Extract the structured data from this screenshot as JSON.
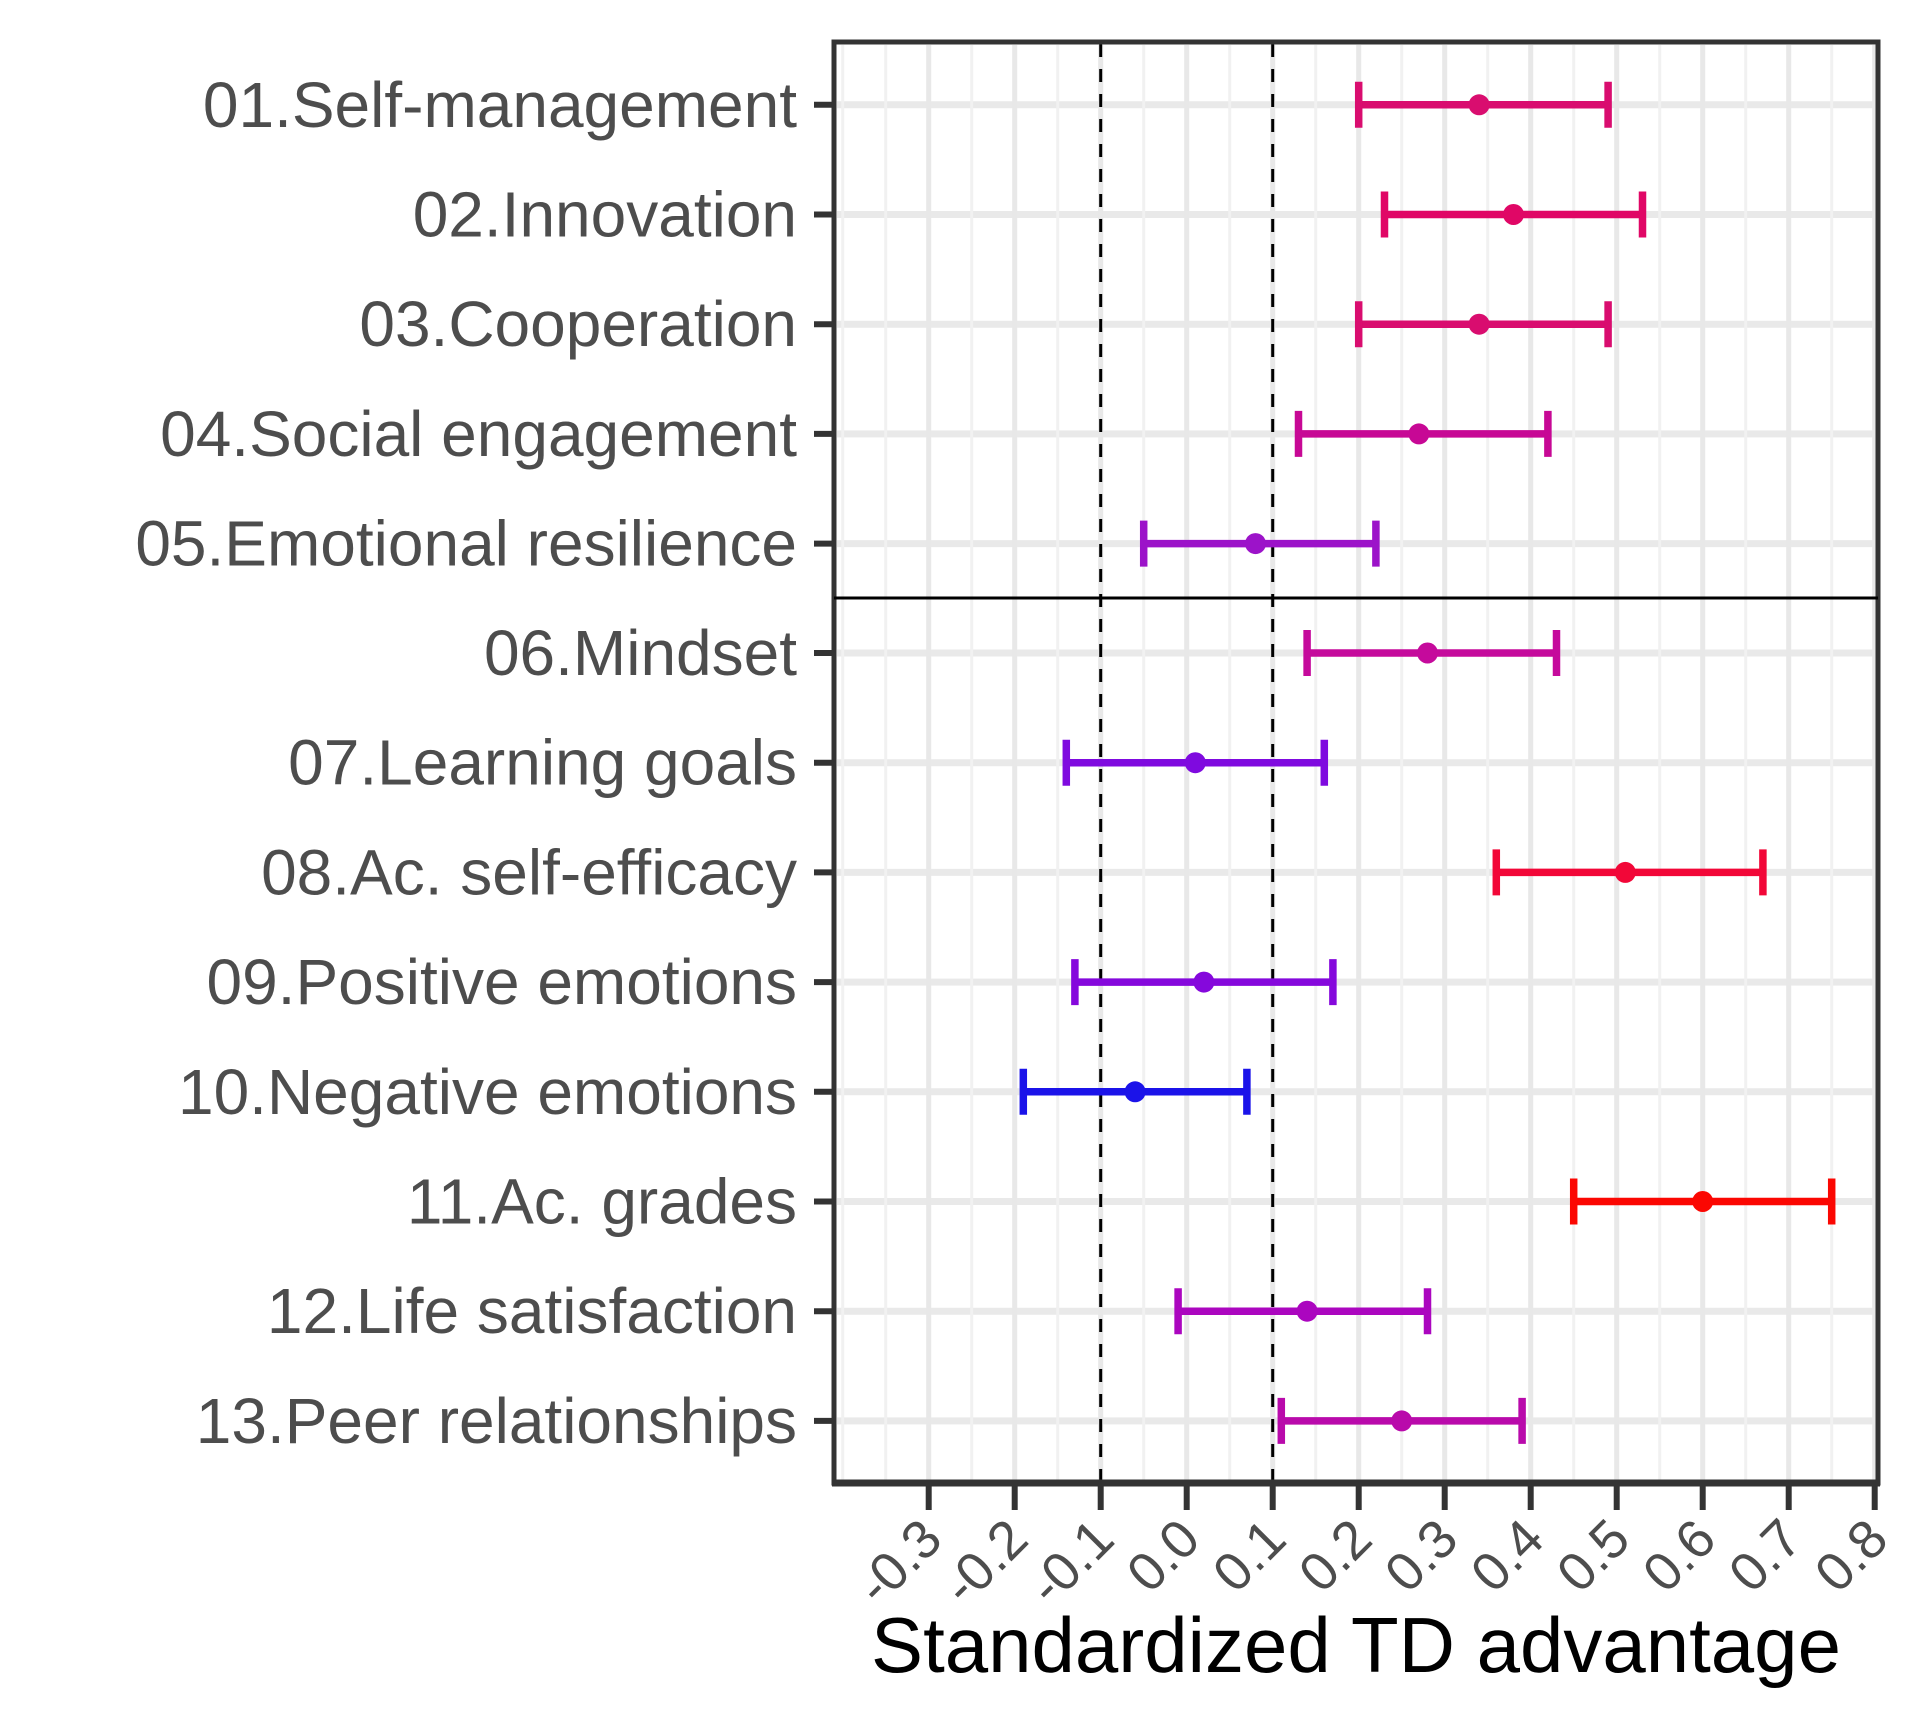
{
  "chart_data": {
    "type": "scatter",
    "subtype": "forest-dot-whisker",
    "title": "",
    "xlabel": "Standardized TD advantage",
    "x_ticks": [
      -0.3,
      -0.2,
      -0.1,
      0.0,
      0.1,
      0.2,
      0.3,
      0.4,
      0.5,
      0.6,
      0.7,
      0.8
    ],
    "x_tick_labels": [
      "-0.3",
      "-0.2",
      "-0.1",
      "0.0",
      "0.1",
      "0.2",
      "0.3",
      "0.4",
      "0.5",
      "0.6",
      "0.7",
      "0.8"
    ],
    "xlim": [
      -0.41,
      0.805
    ],
    "grid": {
      "major": true,
      "minor": true,
      "legend": "none"
    },
    "reference_lines": {
      "values": [
        -0.1,
        0.1
      ],
      "style": "dashed",
      "color": "#000000"
    },
    "facets": [
      {
        "name": "top",
        "categories": [
          {
            "label": "01.Self-management",
            "estimate": 0.34,
            "ci_low": 0.2,
            "ci_high": 0.49,
            "color": "#D90D6F"
          },
          {
            "label": "02.Innovation",
            "estimate": 0.38,
            "ci_low": 0.23,
            "ci_high": 0.53,
            "color": "#E00766"
          },
          {
            "label": "03.Cooperation",
            "estimate": 0.34,
            "ci_low": 0.2,
            "ci_high": 0.49,
            "color": "#D90D6F"
          },
          {
            "label": "04.Social engagement",
            "estimate": 0.27,
            "ci_low": 0.13,
            "ci_high": 0.42,
            "color": "#C70895"
          },
          {
            "label": "05.Emotional resilience",
            "estimate": 0.08,
            "ci_low": -0.05,
            "ci_high": 0.22,
            "color": "#9C13C9"
          }
        ]
      },
      {
        "name": "bottom",
        "categories": [
          {
            "label": "06.Mindset",
            "estimate": 0.28,
            "ci_low": 0.14,
            "ci_high": 0.43,
            "color": "#C50A9C"
          },
          {
            "label": "07.Learning goals",
            "estimate": 0.01,
            "ci_low": -0.14,
            "ci_high": 0.16,
            "color": "#7F0ADF"
          },
          {
            "label": "08.Ac. self-efficacy",
            "estimate": 0.51,
            "ci_low": 0.36,
            "ci_high": 0.67,
            "color": "#F20738"
          },
          {
            "label": "09.Positive emotions",
            "estimate": 0.02,
            "ci_low": -0.13,
            "ci_high": 0.17,
            "color": "#8508DC"
          },
          {
            "label": "10.Negative emotions",
            "estimate": -0.06,
            "ci_low": -0.19,
            "ci_high": 0.07,
            "color": "#1B13E9"
          },
          {
            "label": "11.Ac. grades",
            "estimate": 0.6,
            "ci_low": 0.45,
            "ci_high": 0.75,
            "color": "#FB0702"
          },
          {
            "label": "12.Life satisfaction",
            "estimate": 0.14,
            "ci_low": -0.01,
            "ci_high": 0.28,
            "color": "#AB06BF"
          },
          {
            "label": "13.Peer relationships",
            "estimate": 0.25,
            "ci_low": 0.11,
            "ci_high": 0.39,
            "color": "#B90AAB"
          }
        ]
      }
    ]
  },
  "theme": {
    "background": "#FFFFFF",
    "panel_border_color": "#333333",
    "facet_divider_color": "#000000",
    "grid_major_color": "#E8E8E8",
    "grid_minor_color": "#F1F1F1",
    "row_band_color": "#E9E9E9",
    "axis_text_color": "#4D4D4D",
    "axis_title_color": "#000000"
  }
}
